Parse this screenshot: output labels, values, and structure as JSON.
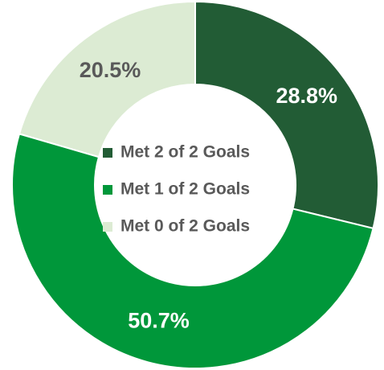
{
  "chart_data": {
    "type": "donut",
    "categories": [
      "Met 2 of 2 Goals",
      "Met 1 of 2 Goals",
      "Met 0 of 2 Goals"
    ],
    "values": [
      28.8,
      50.7,
      20.5
    ],
    "value_labels": [
      "28.8%",
      "50.7%",
      "20.5%"
    ],
    "colors": [
      "#225c35",
      "#00973a",
      "#dcebd3"
    ],
    "legend": "center"
  }
}
